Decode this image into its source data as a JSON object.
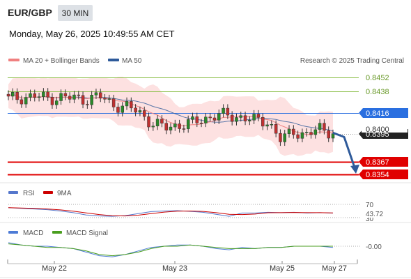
{
  "header": {
    "symbol": "EUR/GBP",
    "timeframe": "30 MIN",
    "datetime": "Monday, May 26, 2025 10:49:55 AM CET"
  },
  "legend": {
    "ma20": "MA 20 + Bollinger Bands",
    "ma50": "MA 50",
    "rsi": "RSI",
    "rsi_ma": "9MA",
    "macd": "MACD",
    "macd_signal": "MACD Signal"
  },
  "watermark": "Research © 2025 Trading Central",
  "colors": {
    "ma20": "#f08080",
    "ma50": "#2e5a9a",
    "bollinger_fill": "#fde1e1",
    "resistance": "#8cbf4a",
    "pivot": "#2a6fe0",
    "support": "#e00000",
    "rsi": "#5577cc",
    "rsi_ma": "#cc0000",
    "macd": "#4d7bd6",
    "macd_signal": "#4a9e1f"
  },
  "levels": {
    "resistance2": "0.8452",
    "resistance1": "0.8438",
    "pivot": "0.8416",
    "current": "0.8400",
    "current_hidden": "0.8395",
    "support1": "0.8367",
    "support2": "0.8354"
  },
  "rsi_panel": {
    "level": "70",
    "value": "43.72",
    "low_level": "30"
  },
  "macd_panel": {
    "value": "-0.00"
  },
  "chart_data": {
    "type": "line",
    "title": "",
    "price_range": [
      0.8345,
      0.8465
    ],
    "x_ticks": [
      "May 22",
      "May 23",
      "May 25",
      "May 27"
    ],
    "series": [
      {
        "name": "EUR/GBP",
        "x_index": [
          0,
          4,
          8,
          12,
          16,
          20,
          24,
          28,
          32,
          36,
          40,
          44,
          48,
          52,
          56,
          60,
          64,
          68,
          72,
          76,
          80,
          84,
          88,
          92,
          96,
          100
        ],
        "values": [
          0.843,
          0.8432,
          0.8433,
          0.8431,
          0.8432,
          0.8431,
          0.843,
          0.8433,
          0.8425,
          0.8422,
          0.8418,
          0.8406,
          0.8401,
          0.8404,
          0.8405,
          0.841,
          0.8414,
          0.8413,
          0.8412,
          0.8408,
          0.8408,
          0.8388,
          0.8398,
          0.8394,
          0.84,
          0.8397
        ]
      }
    ],
    "forecast": {
      "from": 0.8396,
      "to": 0.8354
    },
    "rsi": [
      60,
      58,
      56,
      54,
      50,
      45,
      38,
      35,
      34,
      36,
      42,
      48,
      50,
      51,
      49,
      46,
      40,
      34,
      44,
      44,
      46,
      45,
      46,
      44,
      45,
      43.72
    ],
    "macd": [
      0.0003,
      0.0001,
      0.0,
      0.0,
      -0.0001,
      -0.0002,
      -0.0005,
      -0.0008,
      -0.0009,
      -0.0007,
      -0.0004,
      -0.0001,
      0.0,
      0.0001,
      0.0001,
      0.0,
      -0.0002,
      -0.0003,
      -0.0001,
      -0.0002,
      -0.0001,
      -0.0001,
      0.0,
      0.0,
      0.0,
      -0.0001
    ],
    "macd_signal": [
      0.0002,
      0.0001,
      0.0,
      -0.0001,
      -0.0001,
      -0.0002,
      -0.0004,
      -0.0007,
      -0.0008,
      -0.0007,
      -0.0005,
      -0.0002,
      0.0,
      0.0,
      0.0001,
      0.0,
      -0.0001,
      -0.0002,
      -0.0002,
      -0.0002,
      -0.0001,
      -0.0001,
      0.0,
      0.0,
      0.0,
      0.0
    ]
  }
}
